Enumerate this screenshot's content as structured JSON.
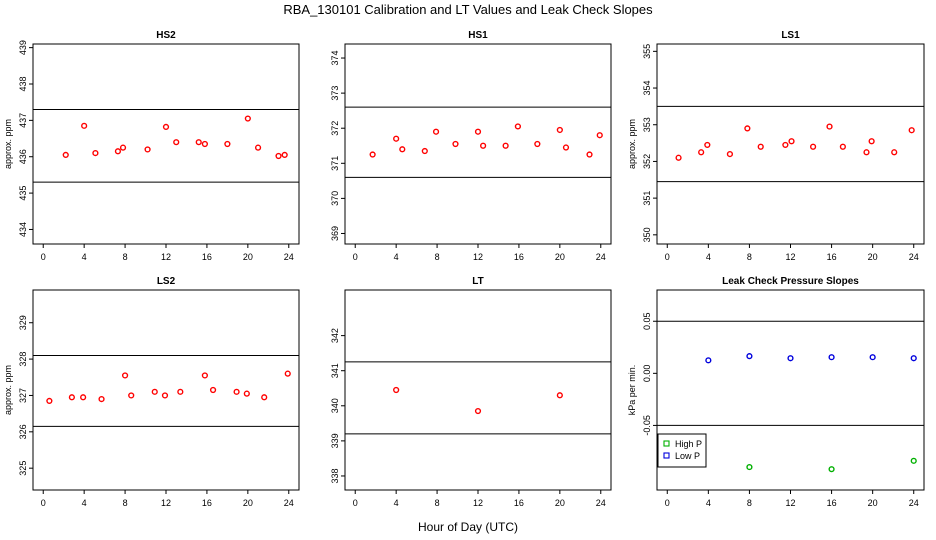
{
  "figure_title": "RBA_130101  Calibration and LT Values and Leak Check Slopes",
  "x_axis_label": "Hour of Day (UTC)",
  "chart_data": [
    {
      "type": "scatter",
      "title": "HS2",
      "ylabel": "approx. ppm",
      "xlim": [
        -1,
        25
      ],
      "ylim": [
        433.6,
        439.1
      ],
      "x_ticks": [
        0,
        4,
        8,
        12,
        16,
        20,
        24
      ],
      "y_ticks": [
        434,
        435,
        436,
        437,
        438,
        439
      ],
      "reference_lines": [
        435.3,
        437.3
      ],
      "series": [
        {
          "color": "#ff0000",
          "x": [
            2.2,
            4.0,
            5.1,
            7.3,
            7.8,
            10.2,
            12.0,
            13.0,
            15.2,
            15.8,
            18.0,
            20.0,
            21.0,
            23.0,
            23.6
          ],
          "y": [
            436.05,
            436.85,
            436.1,
            436.15,
            436.25,
            436.2,
            436.82,
            436.4,
            436.4,
            436.35,
            436.35,
            437.05,
            436.25,
            436.02,
            436.05
          ]
        }
      ]
    },
    {
      "type": "scatter",
      "title": "HS1",
      "ylabel": "",
      "xlim": [
        -1,
        25
      ],
      "ylim": [
        368.7,
        374.4
      ],
      "x_ticks": [
        0,
        4,
        8,
        12,
        16,
        20,
        24
      ],
      "y_ticks": [
        369,
        370,
        371,
        372,
        373,
        374
      ],
      "reference_lines": [
        370.6,
        372.6
      ],
      "series": [
        {
          "color": "#ff0000",
          "x": [
            1.7,
            4.0,
            4.6,
            6.8,
            7.9,
            9.8,
            12.0,
            12.5,
            14.7,
            15.9,
            17.8,
            20.0,
            20.6,
            22.9,
            23.9
          ],
          "y": [
            371.25,
            371.7,
            371.4,
            371.35,
            371.9,
            371.55,
            371.9,
            371.5,
            371.5,
            372.05,
            371.55,
            371.95,
            371.45,
            371.25,
            371.8
          ]
        }
      ]
    },
    {
      "type": "scatter",
      "title": "LS1",
      "ylabel": "approx. ppm",
      "xlim": [
        -1,
        25
      ],
      "ylim": [
        349.75,
        355.2
      ],
      "x_ticks": [
        0,
        4,
        8,
        12,
        16,
        20,
        24
      ],
      "y_ticks": [
        350,
        351,
        352,
        353,
        354,
        355
      ],
      "reference_lines": [
        351.45,
        353.5
      ],
      "series": [
        {
          "color": "#ff0000",
          "x": [
            1.1,
            3.3,
            3.9,
            6.1,
            7.8,
            9.1,
            11.5,
            12.1,
            14.2,
            15.8,
            17.1,
            19.4,
            19.9,
            22.1,
            23.8
          ],
          "y": [
            352.1,
            352.25,
            352.45,
            352.2,
            352.9,
            352.4,
            352.45,
            352.55,
            352.4,
            352.95,
            352.4,
            352.25,
            352.55,
            352.25,
            352.85
          ]
        }
      ]
    },
    {
      "type": "scatter",
      "title": "LS2",
      "ylabel": "approx. ppm",
      "xlim": [
        -1,
        25
      ],
      "ylim": [
        324.4,
        329.9
      ],
      "x_ticks": [
        0,
        4,
        8,
        12,
        16,
        20,
        24
      ],
      "y_ticks": [
        325,
        326,
        327,
        328,
        329
      ],
      "reference_lines": [
        326.15,
        328.1
      ],
      "series": [
        {
          "color": "#ff0000",
          "x": [
            0.6,
            2.8,
            3.9,
            5.7,
            8.0,
            8.6,
            10.9,
            11.9,
            13.4,
            15.8,
            16.6,
            18.9,
            19.9,
            21.6,
            23.9
          ],
          "y": [
            326.85,
            326.95,
            326.95,
            326.9,
            327.55,
            327.0,
            327.1,
            327.0,
            327.1,
            327.55,
            327.15,
            327.1,
            327.05,
            326.95,
            327.6
          ]
        }
      ]
    },
    {
      "type": "scatter",
      "title": "LT",
      "ylabel": "",
      "xlim": [
        -1,
        25
      ],
      "ylim": [
        337.6,
        343.3
      ],
      "x_ticks": [
        0,
        4,
        8,
        12,
        16,
        20,
        24
      ],
      "y_ticks": [
        338,
        339,
        340,
        341,
        342
      ],
      "reference_lines": [
        339.2,
        341.25
      ],
      "series": [
        {
          "color": "#ff0000",
          "x": [
            4.0,
            12.0,
            20.0
          ],
          "y": [
            340.45,
            339.85,
            340.3
          ]
        }
      ]
    },
    {
      "type": "scatter",
      "title": "Leak Check Pressure Slopes",
      "ylabel": "kPa per min.",
      "xlim": [
        -1,
        25
      ],
      "ylim": [
        -0.112,
        0.08
      ],
      "x_ticks": [
        0,
        4,
        8,
        12,
        16,
        20,
        24
      ],
      "y_ticks": [
        -0.05,
        0.0,
        0.05
      ],
      "y_tick_labels": [
        "-0.05",
        "0.00",
        "0.05"
      ],
      "reference_lines": [
        0.05,
        -0.05
      ],
      "legend": {
        "position": "bottom-left",
        "entries": [
          "High P",
          "Low P"
        ]
      },
      "series": [
        {
          "name": "High P",
          "color": "#00b000",
          "x": [
            8.0,
            16.0,
            24.0
          ],
          "y": [
            -0.09,
            -0.092,
            -0.084
          ]
        },
        {
          "name": "Low P",
          "color": "#0000dd",
          "x": [
            4.0,
            8.0,
            12.0,
            16.0,
            20.0,
            24.0
          ],
          "y": [
            0.0125,
            0.0165,
            0.0145,
            0.0155,
            0.0155,
            0.0145
          ]
        }
      ]
    }
  ]
}
